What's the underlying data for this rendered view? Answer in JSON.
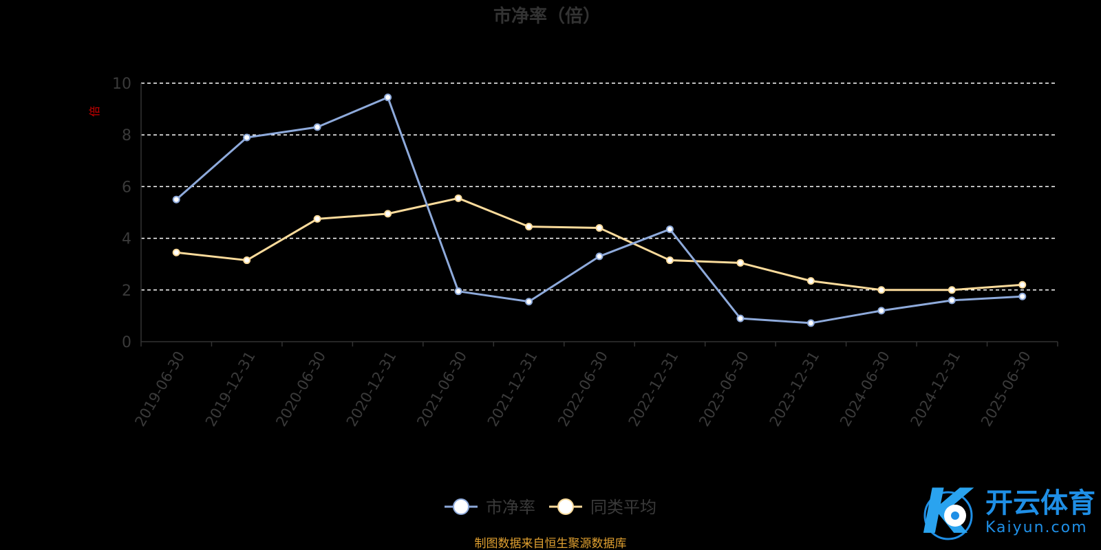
{
  "chart_data": {
    "type": "line",
    "title": "市净率（倍）",
    "ylabel": "倍",
    "ylim": [
      0,
      10
    ],
    "yticks": [
      0,
      2,
      4,
      6,
      8,
      10
    ],
    "grid": true,
    "legend_position": "bottom-center",
    "categories": [
      "2019-06-30",
      "2019-12-31",
      "2020-06-30",
      "2020-12-31",
      "2021-06-30",
      "2021-12-31",
      "2022-06-30",
      "2022-12-31",
      "2023-06-30",
      "2023-12-31",
      "2024-06-30",
      "2024-12-31",
      "2025-06-30"
    ],
    "series": [
      {
        "name": "市净率",
        "color": "#8eaadb",
        "values": [
          5.5,
          7.9,
          8.3,
          9.45,
          1.95,
          1.55,
          3.3,
          4.35,
          0.9,
          0.72,
          1.2,
          1.6,
          1.75
        ]
      },
      {
        "name": "同类平均",
        "color": "#fbdb9b",
        "values": [
          3.45,
          3.15,
          4.75,
          4.95,
          5.55,
          4.45,
          4.4,
          3.15,
          3.05,
          2.35,
          2.0,
          2.0,
          2.2
        ]
      }
    ]
  },
  "source_note": "制图数据来自恒生聚源数据库",
  "watermark": {
    "cn": "开云体育",
    "en": "Kaiyun.com",
    "logo_letter": "K"
  }
}
